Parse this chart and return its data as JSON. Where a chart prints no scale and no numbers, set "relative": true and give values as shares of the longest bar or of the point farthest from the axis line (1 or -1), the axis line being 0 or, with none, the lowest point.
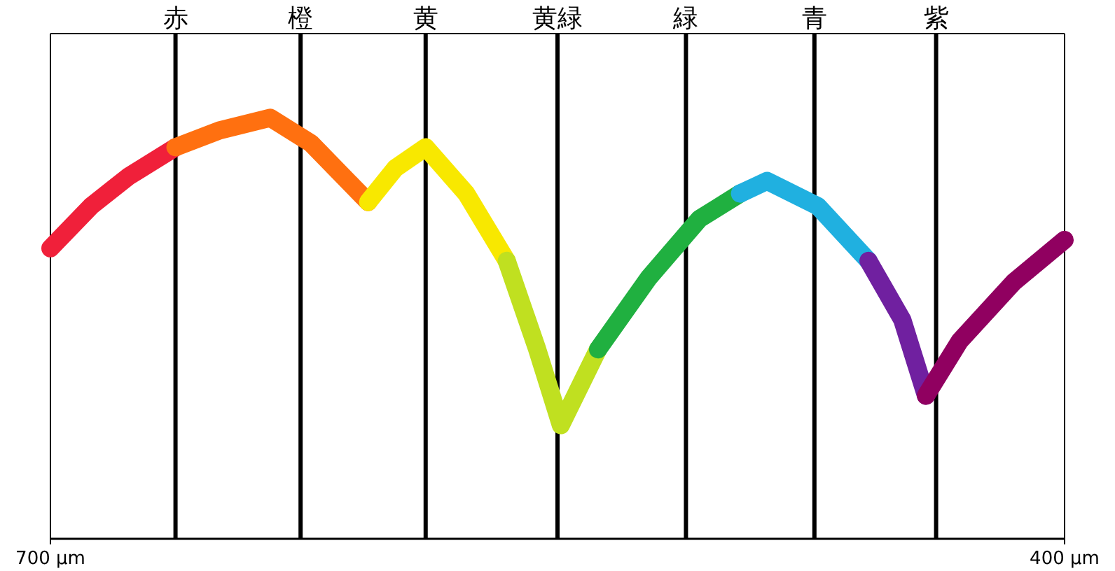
{
  "chart_data": {
    "type": "line",
    "relative": true,
    "xlim": [
      700,
      400
    ],
    "xticks": [
      {
        "value": 700,
        "label": "700 μm"
      },
      {
        "value": 400,
        "label": "400 μm"
      }
    ],
    "ref_lines": [
      {
        "axis": "x",
        "value": 663,
        "label": "赤",
        "color": "#000000"
      },
      {
        "axis": "x",
        "value": 626,
        "label": "橙",
        "color": "#000000"
      },
      {
        "axis": "x",
        "value": 589,
        "label": "黄",
        "color": "#000000"
      },
      {
        "axis": "x",
        "value": 550,
        "label": "黄緑",
        "color": "#000000"
      },
      {
        "axis": "x",
        "value": 512,
        "label": "緑",
        "color": "#000000"
      },
      {
        "axis": "x",
        "value": 474,
        "label": "青",
        "color": "#000000"
      },
      {
        "axis": "x",
        "value": 438,
        "label": "紫",
        "color": "#000000"
      }
    ],
    "series": [
      {
        "color": "#f0203a",
        "x": [
          700,
          688,
          677,
          663
        ],
        "values": [
          0.69,
          0.79,
          0.86,
          0.93
        ]
      },
      {
        "color": "#ff7010",
        "x": [
          663,
          650,
          635,
          623,
          606
        ],
        "values": [
          0.93,
          0.97,
          1.0,
          0.94,
          0.8
        ]
      },
      {
        "color": "#f8e800",
        "x": [
          606,
          598,
          589,
          577,
          565
        ],
        "values": [
          0.8,
          0.88,
          0.93,
          0.82,
          0.66
        ]
      },
      {
        "color": "#c0e020",
        "x": [
          565,
          556,
          549,
          538
        ],
        "values": [
          0.66,
          0.45,
          0.27,
          0.45
        ]
      },
      {
        "color": "#20b040",
        "x": [
          538,
          523,
          508,
          496
        ],
        "values": [
          0.45,
          0.62,
          0.76,
          0.82
        ]
      },
      {
        "color": "#20b0e0",
        "x": [
          496,
          488,
          473,
          458
        ],
        "values": [
          0.82,
          0.85,
          0.79,
          0.66
        ]
      },
      {
        "color": "#7020a0",
        "x": [
          458,
          448,
          441
        ],
        "values": [
          0.66,
          0.52,
          0.34
        ]
      },
      {
        "color": "#900060",
        "x": [
          441,
          431,
          415,
          400
        ],
        "values": [
          0.34,
          0.47,
          0.61,
          0.71
        ]
      }
    ]
  }
}
